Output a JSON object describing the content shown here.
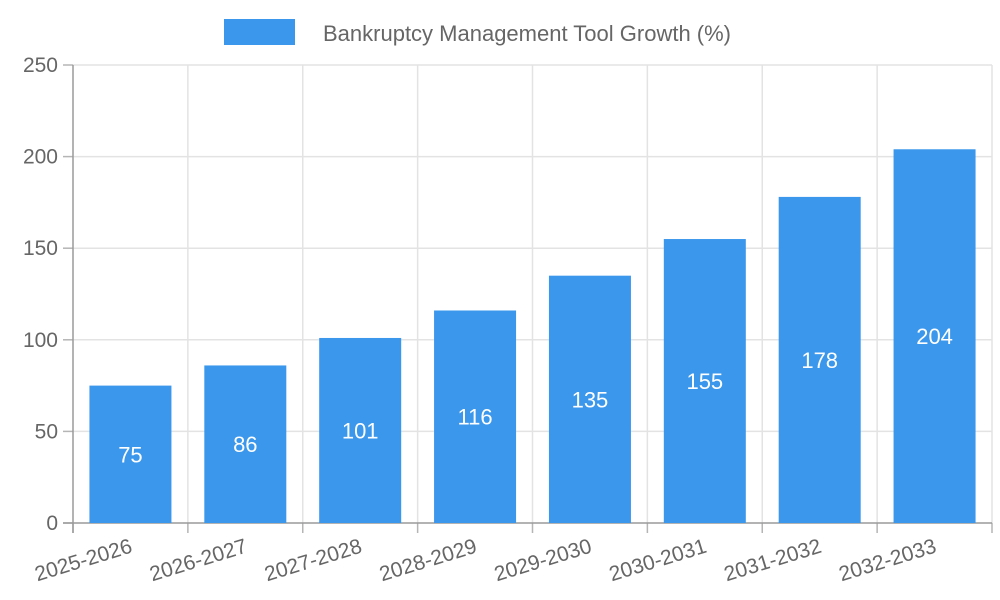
{
  "legend": {
    "label": "Bankruptcy Management Tool Growth (%)"
  },
  "chart_data": {
    "type": "bar",
    "title": "Bankruptcy Management Tool Growth (%)",
    "categories": [
      "2025-2026",
      "2026-2027",
      "2027-2028",
      "2028-2029",
      "2029-2030",
      "2030-2031",
      "2031-2032",
      "2032-2033"
    ],
    "values": [
      75,
      86,
      101,
      116,
      135,
      155,
      178,
      204
    ],
    "value_labels": [
      "75",
      "86",
      "101",
      "116",
      "135",
      "155",
      "178",
      "204"
    ],
    "xlabel": "",
    "ylabel": "",
    "ylim": [
      0,
      250
    ],
    "yticks": [
      0,
      50,
      100,
      150,
      200,
      250
    ],
    "grid": true,
    "legend_position": "top",
    "x_label_rotation_deg": -17
  },
  "colors": {
    "bar": "#3B97EC",
    "grid": "#e3e3e3",
    "axis": "#9a9a9a",
    "tick": "#b5b5b5",
    "tick_label": "#666666",
    "legend_label": "#666666",
    "value_label": "#ffffff",
    "background": "#ffffff"
  }
}
